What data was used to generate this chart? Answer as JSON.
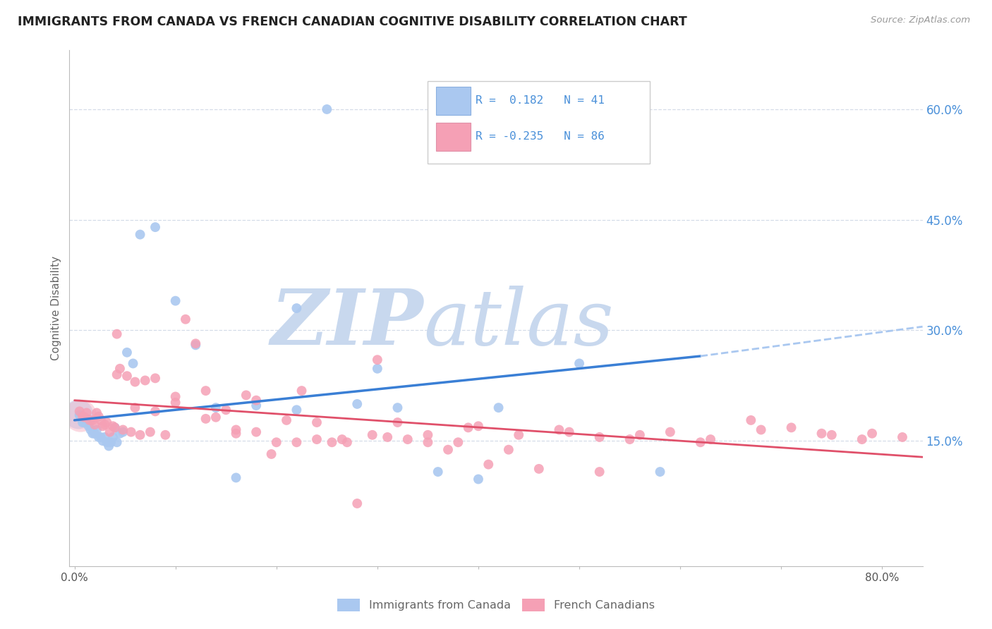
{
  "title": "IMMIGRANTS FROM CANADA VS FRENCH CANADIAN COGNITIVE DISABILITY CORRELATION CHART",
  "source": "Source: ZipAtlas.com",
  "ylabel": "Cognitive Disability",
  "y_ticks_right": [
    0.15,
    0.3,
    0.45,
    0.6
  ],
  "y_tick_labels_right": [
    "15.0%",
    "30.0%",
    "45.0%",
    "60.0%"
  ],
  "xlim": [
    -0.005,
    0.84
  ],
  "ylim": [
    -0.02,
    0.68
  ],
  "legend_blue_r": "0.182",
  "legend_blue_n": "41",
  "legend_pink_r": "-0.235",
  "legend_pink_n": "86",
  "legend_label_blue": "Immigrants from Canada",
  "legend_label_pink": "French Canadians",
  "blue_color": "#aac8f0",
  "pink_color": "#f5a0b5",
  "blue_line_color": "#3a7fd5",
  "pink_line_color": "#e0506a",
  "dashed_line_color": "#aac8f0",
  "watermark_zip_color": "#c8d8ee",
  "watermark_atlas_color": "#c8d8ee",
  "grid_color": "#d5dce8",
  "bg_color": "#ffffff",
  "title_color": "#222222",
  "axis_label_color": "#666666",
  "right_tick_color": "#4a90d9",
  "blue_line_x_start": 0.0,
  "blue_line_x_solid_end": 0.62,
  "blue_line_x_dashed_end": 0.84,
  "blue_line_y_start": 0.178,
  "blue_line_y_solid_end": 0.265,
  "blue_line_y_dashed_end": 0.305,
  "pink_line_x_start": 0.0,
  "pink_line_x_end": 0.84,
  "pink_line_y_start": 0.205,
  "pink_line_y_end": 0.128,
  "blue_x": [
    0.005,
    0.008,
    0.01,
    0.012,
    0.014,
    0.016,
    0.018,
    0.02,
    0.022,
    0.024,
    0.026,
    0.028,
    0.03,
    0.032,
    0.034,
    0.036,
    0.038,
    0.04,
    0.042,
    0.045,
    0.048,
    0.052,
    0.058,
    0.065,
    0.08,
    0.1,
    0.12,
    0.14,
    0.16,
    0.18,
    0.22,
    0.25,
    0.28,
    0.32,
    0.36,
    0.42,
    0.5,
    0.58,
    0.22,
    0.3,
    0.4
  ],
  "blue_y": [
    0.185,
    0.175,
    0.175,
    0.18,
    0.17,
    0.165,
    0.16,
    0.16,
    0.165,
    0.155,
    0.155,
    0.15,
    0.155,
    0.148,
    0.143,
    0.148,
    0.155,
    0.168,
    0.148,
    0.16,
    0.162,
    0.27,
    0.255,
    0.43,
    0.44,
    0.34,
    0.28,
    0.195,
    0.1,
    0.198,
    0.192,
    0.6,
    0.2,
    0.195,
    0.108,
    0.195,
    0.255,
    0.108,
    0.33,
    0.248,
    0.098
  ],
  "pink_x": [
    0.005,
    0.008,
    0.01,
    0.012,
    0.015,
    0.018,
    0.02,
    0.022,
    0.024,
    0.026,
    0.028,
    0.03,
    0.032,
    0.035,
    0.038,
    0.04,
    0.042,
    0.045,
    0.048,
    0.052,
    0.056,
    0.06,
    0.065,
    0.07,
    0.075,
    0.08,
    0.09,
    0.1,
    0.11,
    0.12,
    0.13,
    0.14,
    0.15,
    0.16,
    0.17,
    0.18,
    0.195,
    0.21,
    0.225,
    0.24,
    0.255,
    0.265,
    0.28,
    0.295,
    0.31,
    0.33,
    0.35,
    0.37,
    0.39,
    0.41,
    0.43,
    0.46,
    0.49,
    0.52,
    0.55,
    0.59,
    0.63,
    0.67,
    0.71,
    0.75,
    0.79,
    0.82,
    0.042,
    0.06,
    0.08,
    0.1,
    0.13,
    0.16,
    0.18,
    0.2,
    0.22,
    0.24,
    0.27,
    0.3,
    0.32,
    0.35,
    0.38,
    0.4,
    0.44,
    0.48,
    0.52,
    0.56,
    0.62,
    0.68,
    0.74,
    0.78
  ],
  "pink_y": [
    0.19,
    0.183,
    0.182,
    0.188,
    0.178,
    0.178,
    0.172,
    0.188,
    0.183,
    0.178,
    0.17,
    0.172,
    0.175,
    0.162,
    0.17,
    0.168,
    0.24,
    0.248,
    0.165,
    0.238,
    0.162,
    0.23,
    0.158,
    0.232,
    0.162,
    0.235,
    0.158,
    0.202,
    0.315,
    0.282,
    0.218,
    0.182,
    0.192,
    0.16,
    0.212,
    0.162,
    0.132,
    0.178,
    0.218,
    0.152,
    0.148,
    0.152,
    0.065,
    0.158,
    0.155,
    0.152,
    0.158,
    0.138,
    0.168,
    0.118,
    0.138,
    0.112,
    0.162,
    0.108,
    0.152,
    0.162,
    0.152,
    0.178,
    0.168,
    0.158,
    0.16,
    0.155,
    0.295,
    0.195,
    0.19,
    0.21,
    0.18,
    0.165,
    0.205,
    0.148,
    0.148,
    0.175,
    0.148,
    0.26,
    0.175,
    0.148,
    0.148,
    0.17,
    0.158,
    0.165,
    0.155,
    0.158,
    0.148,
    0.165,
    0.16,
    0.152
  ]
}
